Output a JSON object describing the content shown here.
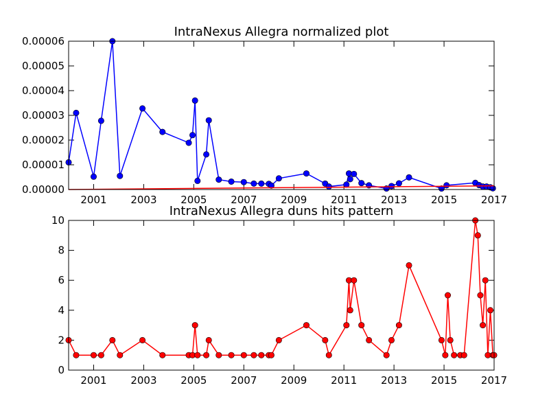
{
  "chart_data": [
    {
      "type": "line",
      "title": "IntraNexus Allegra normalized plot",
      "xlabel": "",
      "ylabel": "",
      "xlim": [
        2000.0,
        2017.0
      ],
      "ylim": [
        0,
        6e-05
      ],
      "xticks": [
        2001,
        2003,
        2005,
        2007,
        2009,
        2011,
        2013,
        2015,
        2017
      ],
      "yticks": [
        0.0,
        1e-05,
        2e-05,
        3e-05,
        4e-05,
        5e-05,
        6e-05
      ],
      "ytick_labels": [
        "0.00000",
        "0.00001",
        "0.00002",
        "0.00003",
        "0.00004",
        "0.00005",
        "0.00006"
      ],
      "grid": false,
      "series": [
        {
          "color": "#0000ff",
          "marker": "circle",
          "points": [
            [
              2000.0,
              1.1e-05
            ],
            [
              2000.3,
              3.1e-05
            ],
            [
              2001.0,
              5.2e-06
            ],
            [
              2001.3,
              2.78e-05
            ],
            [
              2001.75,
              6e-05
            ],
            [
              2002.05,
              5.5e-06
            ],
            [
              2002.95,
              3.28e-05
            ],
            [
              2003.75,
              2.33e-05
            ],
            [
              2004.8,
              1.89e-05
            ],
            [
              2004.95,
              2.2e-05
            ],
            [
              2005.05,
              3.6e-05
            ],
            [
              2005.15,
              3.5e-06
            ],
            [
              2005.5,
              1.42e-05
            ],
            [
              2005.6,
              2.8e-05
            ],
            [
              2006.0,
              4e-06
            ],
            [
              2006.5,
              3.2e-06
            ],
            [
              2007.0,
              3e-06
            ],
            [
              2007.4,
              2.4e-06
            ],
            [
              2007.7,
              2.4e-06
            ],
            [
              2008.0,
              2.3e-06
            ],
            [
              2008.1,
              1.6e-06
            ],
            [
              2008.4,
              4.5e-06
            ],
            [
              2009.5,
              6.5e-06
            ],
            [
              2010.25,
              2.4e-06
            ],
            [
              2010.4,
              1.2e-06
            ],
            [
              2011.1,
              2e-06
            ],
            [
              2011.2,
              6.5e-06
            ],
            [
              2011.25,
              4.2e-06
            ],
            [
              2011.4,
              6.3e-06
            ],
            [
              2011.7,
              2.6e-06
            ],
            [
              2012.0,
              1.7e-06
            ],
            [
              2012.7,
              4e-07
            ],
            [
              2012.9,
              1.4e-06
            ],
            [
              2013.2,
              2.5e-06
            ],
            [
              2013.6,
              4.9e-06
            ],
            [
              2014.9,
              4e-07
            ],
            [
              2015.1,
              1.7e-06
            ],
            [
              2016.25,
              2.7e-06
            ],
            [
              2016.4,
              1.8e-06
            ],
            [
              2016.55,
              1.2e-06
            ],
            [
              2016.7,
              1.2e-06
            ],
            [
              2016.85,
              9e-07
            ],
            [
              2016.95,
              5e-07
            ]
          ]
        },
        {
          "color": "#ff0000",
          "marker": "none",
          "points": [
            [
              2000.0,
              0.0
            ],
            [
              2017.0,
              1.5e-06
            ]
          ]
        }
      ]
    },
    {
      "type": "line",
      "title": "IntraNexus Allegra duns hits pattern",
      "xlabel": "",
      "ylabel": "",
      "xlim": [
        2000.0,
        2017.0
      ],
      "ylim": [
        0,
        10
      ],
      "xticks": [
        2001,
        2003,
        2005,
        2007,
        2009,
        2011,
        2013,
        2015,
        2017
      ],
      "yticks": [
        0,
        2,
        4,
        6,
        8,
        10
      ],
      "ytick_labels": [
        "0",
        "2",
        "4",
        "6",
        "8",
        "10"
      ],
      "grid": false,
      "series": [
        {
          "color": "#ff0000",
          "marker": "circle",
          "points": [
            [
              2000.0,
              2
            ],
            [
              2000.3,
              1
            ],
            [
              2001.0,
              1
            ],
            [
              2001.3,
              1
            ],
            [
              2001.75,
              2
            ],
            [
              2002.05,
              1
            ],
            [
              2002.95,
              2
            ],
            [
              2003.75,
              1
            ],
            [
              2004.8,
              1
            ],
            [
              2004.95,
              1
            ],
            [
              2005.05,
              3
            ],
            [
              2005.15,
              1
            ],
            [
              2005.5,
              1
            ],
            [
              2005.6,
              2
            ],
            [
              2006.0,
              1
            ],
            [
              2006.5,
              1
            ],
            [
              2007.0,
              1
            ],
            [
              2007.4,
              1
            ],
            [
              2007.7,
              1
            ],
            [
              2008.0,
              1
            ],
            [
              2008.1,
              1
            ],
            [
              2008.4,
              2
            ],
            [
              2009.5,
              3
            ],
            [
              2010.25,
              2
            ],
            [
              2010.4,
              1
            ],
            [
              2011.1,
              3
            ],
            [
              2011.2,
              6
            ],
            [
              2011.25,
              4
            ],
            [
              2011.4,
              6
            ],
            [
              2011.7,
              3
            ],
            [
              2012.0,
              2
            ],
            [
              2012.7,
              1
            ],
            [
              2012.9,
              2
            ],
            [
              2013.2,
              3
            ],
            [
              2013.6,
              7
            ],
            [
              2014.9,
              2
            ],
            [
              2015.05,
              1
            ],
            [
              2015.15,
              5
            ],
            [
              2015.25,
              2
            ],
            [
              2015.4,
              1
            ],
            [
              2015.65,
              1
            ],
            [
              2015.8,
              1
            ],
            [
              2016.25,
              10
            ],
            [
              2016.35,
              9
            ],
            [
              2016.45,
              5
            ],
            [
              2016.55,
              3
            ],
            [
              2016.65,
              6
            ],
            [
              2016.75,
              1
            ],
            [
              2016.85,
              4
            ],
            [
              2016.95,
              1
            ],
            [
              2017.0,
              1
            ]
          ]
        }
      ]
    }
  ]
}
